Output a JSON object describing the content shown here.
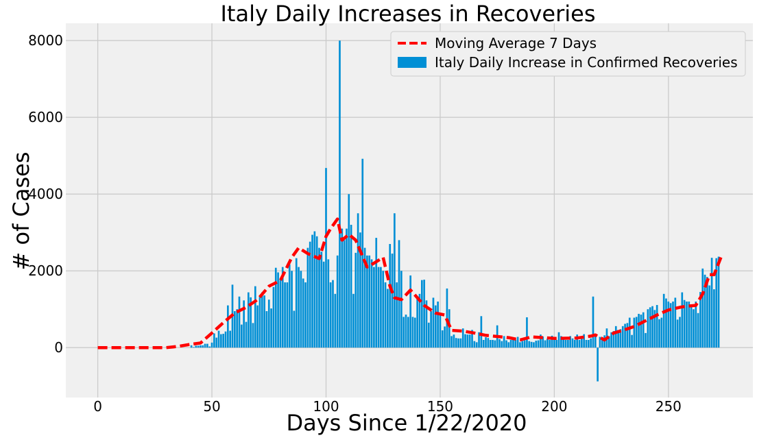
{
  "chart_data": {
    "type": "bar",
    "title": "Italy Daily Increases in Recoveries",
    "xlabel": "Days Since 1/22/2020",
    "ylabel": "# of Cases",
    "xlim": [
      -14,
      287
    ],
    "ylim": [
      -1300,
      8450
    ],
    "xticks": [
      0,
      50,
      100,
      150,
      200,
      250
    ],
    "yticks": [
      0,
      2000,
      4000,
      6000,
      8000
    ],
    "grid": true,
    "legend_position": "top-right",
    "colors": {
      "bars": "#008fd5",
      "moving_average": "#ff0000",
      "plot_background": "#f0f0f0",
      "grid": "#cbcbcb"
    },
    "series": [
      {
        "name": "Italy Daily Increase in Confirmed Recoveries",
        "type": "bar",
        "x_start": 0,
        "values": [
          0,
          0,
          0,
          0,
          0,
          0,
          0,
          0,
          0,
          0,
          0,
          0,
          0,
          0,
          0,
          0,
          0,
          0,
          0,
          0,
          0,
          0,
          0,
          0,
          0,
          0,
          0,
          0,
          0,
          0,
          0,
          0,
          1,
          0,
          0,
          0,
          0,
          0,
          0,
          0,
          0,
          60,
          15,
          50,
          50,
          60,
          60,
          100,
          100,
          30,
          130,
          370,
          260,
          440,
          350,
          360,
          420,
          1100,
          440,
          1640,
          950,
          1000,
          1330,
          600,
          1230,
          670,
          1440,
          1310,
          640,
          1600,
          1100,
          1320,
          1440,
          1360,
          950,
          1250,
          1020,
          1580,
          2080,
          1960,
          1760,
          2100,
          1700,
          1700,
          2170,
          2000,
          960,
          2330,
          2100,
          2000,
          1800,
          1700,
          2600,
          2760,
          2940,
          3030,
          2900,
          2600,
          2500,
          2240,
          4680,
          2300,
          1700,
          1760,
          1400,
          2400,
          8000,
          3100,
          2800,
          3100,
          4000,
          3200,
          1400,
          2470,
          3500,
          3000,
          4920,
          2600,
          2400,
          2400,
          2300,
          2100,
          2860,
          2100,
          2100,
          2000,
          1700,
          1530,
          2700,
          2450,
          3500,
          1700,
          2800,
          2000,
          800,
          860,
          800,
          1880,
          800,
          780,
          1280,
          1400,
          1760,
          1770,
          1230,
          650,
          950,
          1300,
          1100,
          1200,
          900,
          450,
          550,
          1540,
          1000,
          300,
          340,
          250,
          240,
          240,
          500,
          350,
          340,
          340,
          460,
          170,
          140,
          400,
          820,
          200,
          270,
          250,
          200,
          200,
          190,
          580,
          220,
          170,
          300,
          190,
          140,
          200,
          240,
          210,
          280,
          140,
          170,
          190,
          790,
          170,
          150,
          140,
          180,
          190,
          340,
          290,
          190,
          230,
          200,
          310,
          200,
          200,
          400,
          300,
          250,
          200,
          200,
          300,
          240,
          200,
          340,
          200,
          230,
          350,
          200,
          200,
          240,
          1330,
          320,
          -880,
          280,
          250,
          320,
          500,
          300,
          400,
          430,
          560,
          460,
          480,
          560,
          620,
          640,
          780,
          330,
          780,
          800,
          880,
          860,
          920,
          380,
          1000,
          1050,
          1080,
          980,
          1110,
          740,
          780,
          1400,
          1280,
          1200,
          1160,
          1200,
          1300,
          730,
          800,
          1440,
          1240,
          1200,
          1200,
          1100,
          1000,
          1200,
          900,
          1450,
          2060,
          1900,
          1840,
          1620,
          2340,
          1520,
          2330,
          2370
        ]
      },
      {
        "name": "Moving Average 7 Days",
        "type": "line",
        "style": "dashed",
        "points": [
          [
            0,
            0
          ],
          [
            30,
            0
          ],
          [
            35,
            30
          ],
          [
            40,
            80
          ],
          [
            45,
            120
          ],
          [
            50,
            380
          ],
          [
            55,
            650
          ],
          [
            60,
            900
          ],
          [
            65,
            1050
          ],
          [
            70,
            1250
          ],
          [
            75,
            1600
          ],
          [
            80,
            1750
          ],
          [
            85,
            2350
          ],
          [
            88,
            2600
          ],
          [
            92,
            2450
          ],
          [
            97,
            2320
          ],
          [
            100,
            2900
          ],
          [
            102,
            3100
          ],
          [
            105,
            3350
          ],
          [
            107,
            2800
          ],
          [
            110,
            2950
          ],
          [
            113,
            2800
          ],
          [
            118,
            2100
          ],
          [
            121,
            2200
          ],
          [
            125,
            2350
          ],
          [
            128,
            1600
          ],
          [
            130,
            1300
          ],
          [
            133,
            1250
          ],
          [
            137,
            1500
          ],
          [
            140,
            1300
          ],
          [
            143,
            1100
          ],
          [
            148,
            900
          ],
          [
            152,
            850
          ],
          [
            155,
            450
          ],
          [
            160,
            430
          ],
          [
            165,
            380
          ],
          [
            170,
            320
          ],
          [
            180,
            260
          ],
          [
            185,
            200
          ],
          [
            190,
            280
          ],
          [
            200,
            240
          ],
          [
            210,
            250
          ],
          [
            216,
            300
          ],
          [
            218,
            330
          ],
          [
            222,
            200
          ],
          [
            226,
            380
          ],
          [
            230,
            450
          ],
          [
            235,
            550
          ],
          [
            240,
            700
          ],
          [
            245,
            850
          ],
          [
            250,
            980
          ],
          [
            255,
            1050
          ],
          [
            258,
            1080
          ],
          [
            262,
            1100
          ],
          [
            265,
            1400
          ],
          [
            268,
            1900
          ],
          [
            270,
            1900
          ],
          [
            273,
            2350
          ]
        ]
      }
    ]
  }
}
